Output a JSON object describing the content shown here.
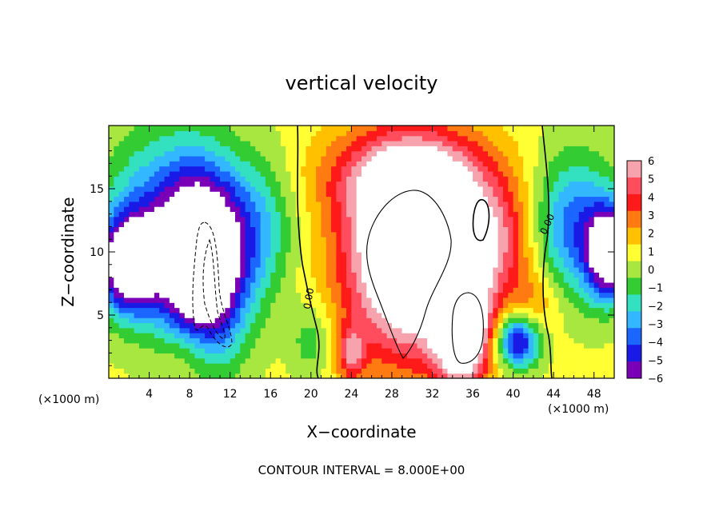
{
  "chart_data": {
    "type": "heatmap",
    "title": "vertical velocity",
    "xlabel": "X−coordinate",
    "ylabel": "Z−coordinate",
    "x_unit_left": "(×1000 m)",
    "x_unit_right": "(×1000 m)",
    "footer": "CONTOUR INTERVAL = 8.000E+00",
    "xlim": [
      0,
      50
    ],
    "ylim": [
      0,
      20
    ],
    "x_ticks": [
      4,
      8,
      12,
      16,
      20,
      24,
      28,
      32,
      36,
      40,
      44,
      48
    ],
    "x_tick_labels": [
      "4",
      "8",
      "12",
      "16",
      "20",
      "24",
      "28",
      "32",
      "36",
      "40",
      "44",
      "48"
    ],
    "y_ticks": [
      5,
      10,
      15
    ],
    "y_tick_labels": [
      "5",
      "10",
      "15"
    ],
    "colorbar": {
      "levels": [
        6,
        5,
        4,
        3,
        2,
        1,
        0,
        -1,
        -2,
        -3,
        -4,
        -5,
        -6
      ],
      "labels": [
        "6",
        "5",
        "4",
        "3",
        "2",
        "1",
        "0",
        "−1",
        "−2",
        "−3",
        "−4",
        "−5",
        "−6"
      ],
      "colors": [
        "#f7a3ae",
        "#ff4d5e",
        "#ff1a1a",
        "#ff7a10",
        "#ffc000",
        "#ffff33",
        "#a8e640",
        "#33cc33",
        "#33e0c0",
        "#33b8ff",
        "#1a66ff",
        "#1a1ae6",
        "#7a00b8"
      ]
    },
    "contour_labels": [
      {
        "text": "0.00",
        "x": 20,
        "z": 6.5
      },
      {
        "text": "0.00",
        "x": 44,
        "z": 12
      }
    ],
    "features": [
      {
        "kind": "updraft",
        "x": 30,
        "z": 10,
        "sx": 4.5,
        "sz": 5.5,
        "w": 11
      },
      {
        "kind": "updraft",
        "x": 35,
        "z": 4,
        "sx": 1.8,
        "sz": 3.2,
        "w": 9
      },
      {
        "kind": "updraft",
        "x": 30,
        "z": 16,
        "sx": 6,
        "sz": 2.5,
        "w": 4
      },
      {
        "kind": "updraft",
        "x": 38,
        "z": 11,
        "sx": 3,
        "sz": 3,
        "w": 4
      },
      {
        "kind": "updraft",
        "x": 24,
        "z": 2,
        "sx": 1,
        "sz": 1.5,
        "w": 4
      },
      {
        "kind": "updraft",
        "x": 42,
        "z": 6,
        "sx": 2,
        "sz": 2,
        "w": 2
      },
      {
        "kind": "updraft",
        "x": 8,
        "z": 2,
        "sx": 2,
        "sz": 2,
        "w": 2
      },
      {
        "kind": "downdraft",
        "x": 9.5,
        "z": 9,
        "sx": 2.8,
        "sz": 5,
        "w": -11
      },
      {
        "kind": "downdraft",
        "x": 5,
        "z": 12,
        "sx": 4,
        "sz": 5,
        "w": -5
      },
      {
        "kind": "downdraft",
        "x": 2,
        "z": 9,
        "sx": 2,
        "sz": 2.5,
        "w": -9
      },
      {
        "kind": "downdraft",
        "x": 49.5,
        "z": 10,
        "sx": 1.5,
        "sz": 2.5,
        "w": -9
      },
      {
        "kind": "downdraft",
        "x": 46,
        "z": 12,
        "sx": 3,
        "sz": 4,
        "w": -5
      },
      {
        "kind": "downdraft",
        "x": 40.5,
        "z": 3,
        "sx": 1.5,
        "sz": 1.5,
        "w": -7
      },
      {
        "kind": "downdraft",
        "x": 15,
        "z": 12,
        "sx": 2.5,
        "sz": 4,
        "w": -3
      },
      {
        "kind": "downdraft",
        "x": 20,
        "z": 3,
        "sx": 1.5,
        "sz": 2,
        "w": -2
      }
    ]
  }
}
